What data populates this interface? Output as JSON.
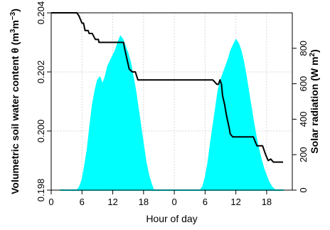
{
  "chart_data": {
    "type": "line",
    "xlabel": "Hour of day",
    "ylabel_left": {
      "prefix": "Volumetric soil water content θ (m",
      "sup1": "3",
      "middle": "m",
      "sup2": "−3",
      "suffix": ")"
    },
    "ylabel_right": {
      "prefix": "Solar radiation (W m",
      "sup": "2",
      "suffix": ")"
    },
    "x_tick_labels": [
      "0",
      "6",
      "12",
      "18",
      "0",
      "6",
      "12",
      "18"
    ],
    "x_ticks_hours": [
      0,
      6,
      12,
      18,
      24,
      30,
      36,
      42
    ],
    "x_range": [
      0,
      47
    ],
    "left_axis": {
      "ylim": [
        0.198,
        0.204
      ],
      "ticks": [
        0.198,
        0.2,
        0.202,
        0.204
      ],
      "tick_labels": [
        "0.198",
        "0.200",
        "0.202",
        "0.204"
      ]
    },
    "right_axis": {
      "ylim": [
        0,
        1000
      ],
      "ticks": [
        0,
        200,
        400,
        600,
        800
      ],
      "tick_labels": [
        "0",
        "200",
        "400",
        "600",
        "800"
      ]
    },
    "grid": true,
    "colors": {
      "soil_water": "#000000",
      "solar": "#00ffff",
      "right_axis_title": "#00d5d5",
      "grid": "#d8d8d8"
    },
    "series": [
      {
        "axis": "left",
        "render": "line",
        "x": [
          0,
          5,
          5.4,
          6,
          6.3,
          6.6,
          7.2,
          7.4,
          8.0,
          8.6,
          9.2,
          9.3,
          10.3,
          11.3,
          13.1,
          13.4,
          14.1,
          14.3,
          15.2,
          15.8,
          16.4,
          16.9,
          17.8,
          18.4,
          21.5,
          24.0,
          27.8,
          31.5,
          32.3,
          32.6,
          32.9,
          33.2,
          33.4,
          33.8,
          34.2,
          34.7,
          34.9,
          35.4,
          35.8,
          36.4,
          37.0,
          38.8,
          39.4,
          40.1,
          41.2,
          41.8,
          42.3,
          42.8,
          43.3,
          44.0,
          45.2
        ],
        "y": [
          0.204,
          0.204,
          0.2039,
          0.20365,
          0.20365,
          0.2034,
          0.2034,
          0.2033,
          0.2033,
          0.2031,
          0.2031,
          0.203,
          0.203,
          0.203,
          0.203,
          0.203,
          0.203,
          0.2028,
          0.2021,
          0.202,
          0.202,
          0.20173,
          0.20173,
          0.20173,
          0.20173,
          0.20173,
          0.20173,
          0.20173,
          0.20158,
          0.20158,
          0.20173,
          0.20158,
          0.2012,
          0.2009,
          0.2005,
          0.2001,
          0.1999,
          0.1998,
          0.1998,
          0.1998,
          0.1998,
          0.1998,
          0.1998,
          0.1995,
          0.1995,
          0.1992,
          0.199,
          0.19905,
          0.19895,
          0.19895,
          0.19895
        ]
      },
      {
        "axis": "right",
        "render": "area",
        "x": [
          5.0,
          5.5,
          6.0,
          6.5,
          7.0,
          7.5,
          8.0,
          8.5,
          9.0,
          9.5,
          10.0,
          10.5,
          11.0,
          11.5,
          12.0,
          12.5,
          13.0,
          13.5,
          14.0,
          14.5,
          15.0,
          15.5,
          16.0,
          16.5,
          17.0,
          17.5,
          18.0,
          18.5,
          19.0,
          19.5,
          20.0
        ],
        "y": [
          0,
          20,
          60,
          140,
          230,
          360,
          480,
          560,
          620,
          640,
          600,
          640,
          700,
          730,
          760,
          790,
          835,
          870,
          850,
          810,
          770,
          720,
          640,
          560,
          460,
          360,
          260,
          160,
          90,
          40,
          0
        ]
      },
      {
        "axis": "right",
        "render": "area",
        "x": [
          29.0,
          29.5,
          30.0,
          30.5,
          31.0,
          31.5,
          32.0,
          32.5,
          33.0,
          33.5,
          34.0,
          34.5,
          35.0,
          35.5,
          36.0,
          36.5,
          37.0,
          37.5,
          38.0,
          38.5,
          39.0,
          39.5,
          40.0,
          40.5,
          41.0,
          41.5,
          42.0,
          42.5,
          43.0,
          43.5,
          44.0
        ],
        "y": [
          0,
          20,
          70,
          150,
          260,
          360,
          460,
          560,
          620,
          660,
          700,
          740,
          790,
          820,
          850,
          830,
          790,
          730,
          650,
          560,
          470,
          380,
          300,
          230,
          170,
          120,
          80,
          45,
          20,
          5,
          0
        ]
      }
    ]
  }
}
